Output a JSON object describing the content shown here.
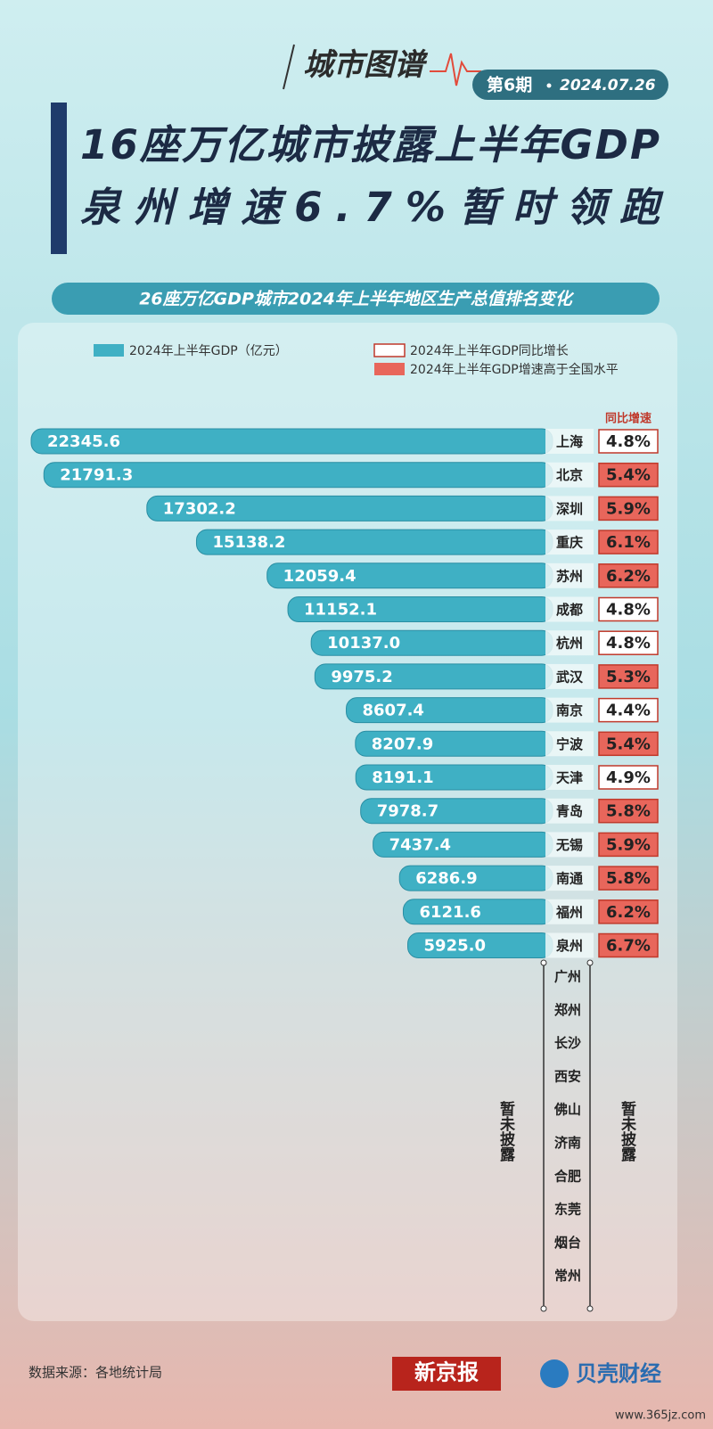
{
  "header": {
    "brand": "城市图谱",
    "issue": "第6期",
    "date": "2024.07.26",
    "title_lines": [
      "16座万亿城市披露上半年GDP",
      "泉州增速6.7%暂时领跑"
    ]
  },
  "chart_data": {
    "type": "bar",
    "orientation": "horizontal",
    "title": "26座万亿GDP城市2024年上半年地区生产总值排名变化",
    "categories": [
      "上海",
      "北京",
      "深圳",
      "重庆",
      "苏州",
      "成都",
      "杭州",
      "武汉",
      "南京",
      "宁波",
      "天津",
      "青岛",
      "无锡",
      "南通",
      "福州",
      "泉州"
    ],
    "series": [
      {
        "name": "2024年上半年GDP（亿元）",
        "color": "#3fb0c4",
        "values": [
          22345.6,
          21791.3,
          17302.2,
          15138.2,
          12059.4,
          11152.1,
          10137.0,
          9975.2,
          8607.4,
          8207.9,
          8191.1,
          7978.7,
          7437.4,
          6286.9,
          6121.6,
          5925.0
        ],
        "value_labels": [
          "22345.6",
          "21791.3",
          "17302.2",
          "15138.2",
          "12059.4",
          "11152.1",
          "10137.0",
          "9975.2",
          "8607.4",
          "8207.9",
          "8191.1",
          "7978.7",
          "7437.4",
          "6286.9",
          "6121.6",
          "5925.0"
        ]
      },
      {
        "name": "2024年上半年GDP同比增长",
        "color": "#c0392b",
        "values": [
          4.8,
          5.4,
          5.9,
          6.1,
          6.2,
          4.8,
          4.8,
          5.3,
          4.4,
          5.4,
          4.9,
          5.8,
          5.9,
          5.8,
          6.2,
          6.7
        ],
        "value_labels": [
          "4.8%",
          "5.4%",
          "5.9%",
          "6.1%",
          "6.2%",
          "4.8%",
          "4.8%",
          "5.3%",
          "4.4%",
          "5.4%",
          "4.9%",
          "5.8%",
          "5.9%",
          "5.8%",
          "6.2%",
          "6.7%"
        ]
      }
    ],
    "highlight": {
      "name": "2024年上半年GDP增速高于全国水平",
      "color": "#e8665b",
      "flags": [
        false,
        true,
        true,
        true,
        true,
        false,
        false,
        true,
        false,
        true,
        false,
        true,
        true,
        true,
        true,
        true
      ]
    },
    "growth_column_label": "同比增速",
    "undisclosed": {
      "label": "暂未披露",
      "cities": [
        "广州",
        "郑州",
        "长沙",
        "西安",
        "佛山",
        "济南",
        "合肥",
        "东莞",
        "烟台",
        "常州"
      ]
    }
  },
  "footer": {
    "source": "数据来源：各地统计局",
    "logo1": "新京报",
    "logo2": "贝壳财经",
    "watermark": "www.365jz.com"
  }
}
